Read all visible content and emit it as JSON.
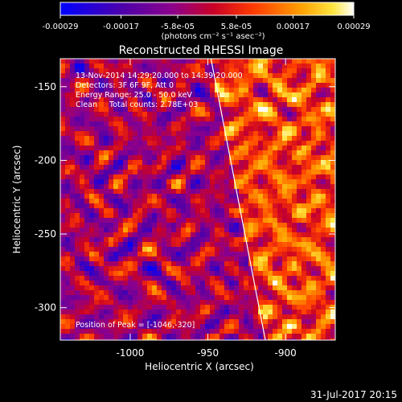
{
  "chart_data": {
    "type": "heatmap",
    "title": "Reconstructed RHESSI Image",
    "xlabel": "Heliocentric X (arcsec)",
    "ylabel": "Heliocentric Y (arcsec)",
    "xlim": [
      -1045,
      -868
    ],
    "ylim": [
      -322,
      -131
    ],
    "x_ticks": [
      -1000,
      -950,
      -900
    ],
    "y_ticks": [
      -300,
      -250,
      -200,
      -150
    ],
    "colorbar": {
      "range": [
        -0.00029,
        0.00029
      ],
      "tick_values": [
        -0.00029,
        -0.00017,
        -5.8e-05,
        5.8e-05,
        0.00017,
        0.00029
      ],
      "tick_labels": [
        "-0.00029",
        "-0.00017",
        "-5.8e-05",
        "5.8e-05",
        "0.00017",
        "0.00029"
      ],
      "unit_label": "(photons cm⁻² s⁻¹ asec⁻²)"
    },
    "annotations": {
      "time_range": "13-Nov-2014 14:29:20.000 to 14:39:20.000",
      "detectors": "Detectors: 3F 6F 9F, Att 0",
      "energy_range": "Energy Range: 25.0 - 50.0 keV",
      "clean_info": "Clean     Total counts: 2.78E+03",
      "peak": "Position of Peak = [-1046,-320]"
    },
    "limb_line": {
      "x": [
        -948,
        -913
      ],
      "y": [
        -131,
        -322
      ]
    },
    "date_stamp": "31-Jul-2017 20:15"
  }
}
